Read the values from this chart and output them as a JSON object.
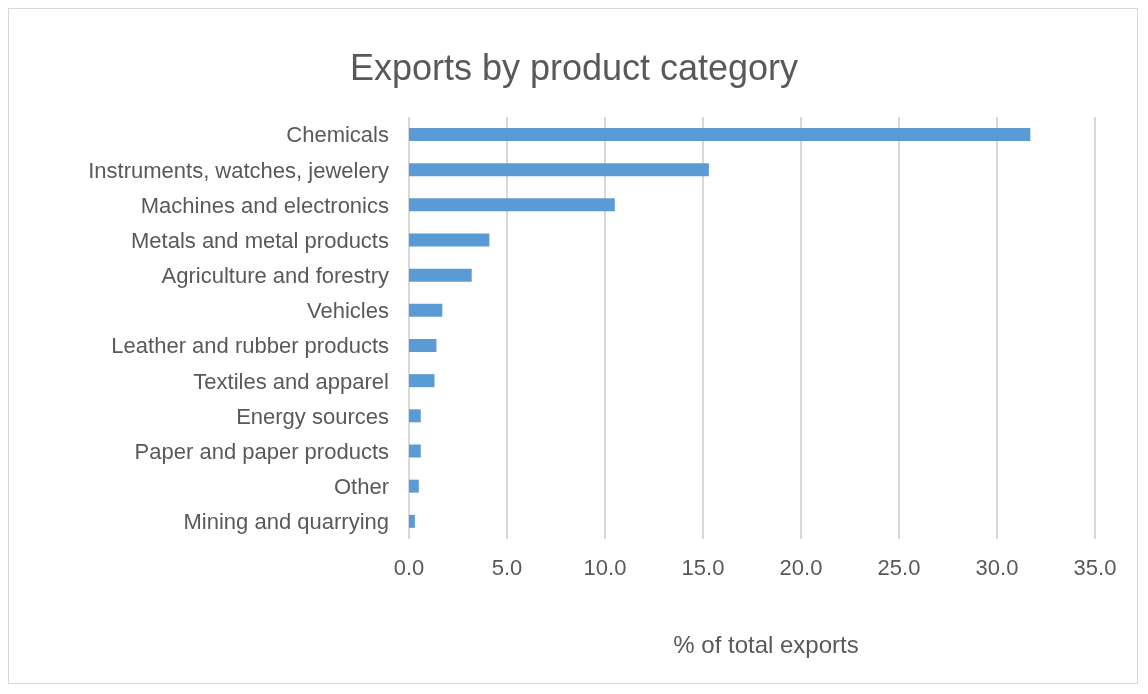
{
  "chart_data": {
    "type": "bar",
    "orientation": "horizontal",
    "title": "Exports by product category",
    "xlabel": "% of total exports",
    "categories": [
      "Chemicals",
      "Instruments, watches, jewelery",
      "Machines and electronics",
      "Metals and metal products",
      "Agriculture and forestry",
      "Vehicles",
      "Leather and rubber products",
      "Textiles and apparel",
      "Energy sources",
      "Paper and paper products",
      "Other",
      "Mining and quarrying"
    ],
    "values": [
      31.7,
      15.3,
      10.5,
      4.1,
      3.2,
      1.7,
      1.4,
      1.3,
      0.6,
      0.6,
      0.5,
      0.3
    ],
    "color": "#5b9bd5",
    "xlim": [
      0,
      35
    ],
    "xticks": [
      {
        "value": 0,
        "label": "0.0"
      },
      {
        "value": 5,
        "label": "5.0"
      },
      {
        "value": 10,
        "label": "10.0"
      },
      {
        "value": 15,
        "label": "15.0"
      },
      {
        "value": 20,
        "label": "20.0"
      },
      {
        "value": 25,
        "label": "25.0"
      },
      {
        "value": 30,
        "label": "30.0"
      },
      {
        "value": 35,
        "label": "35.0"
      }
    ],
    "grid": "x"
  }
}
